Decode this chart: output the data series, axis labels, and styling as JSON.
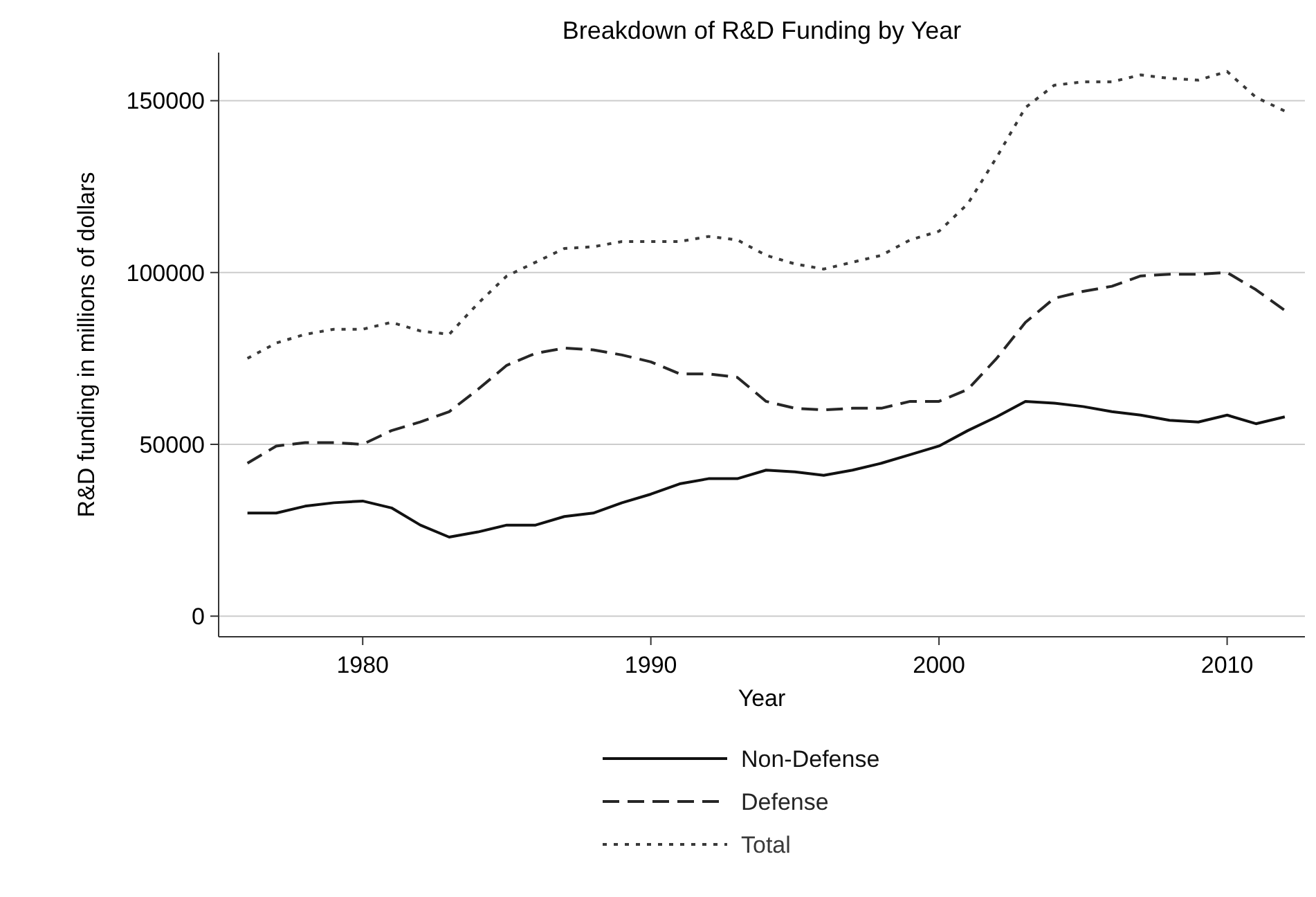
{
  "chart_data": {
    "type": "line",
    "title": "Breakdown of R&D Funding by Year",
    "xlabel": "Year",
    "ylabel": "R&D funding in millions of dollars",
    "x": [
      1976,
      1977,
      1978,
      1979,
      1980,
      1981,
      1982,
      1983,
      1984,
      1985,
      1986,
      1987,
      1988,
      1989,
      1990,
      1991,
      1992,
      1993,
      1994,
      1995,
      1996,
      1997,
      1998,
      1999,
      2000,
      2001,
      2002,
      2003,
      2004,
      2005,
      2006,
      2007,
      2008,
      2009,
      2010,
      2011,
      2012
    ],
    "xlim": [
      1975,
      2012.7
    ],
    "xticks": [
      1980,
      1990,
      2000,
      2010
    ],
    "ylim": [
      -6000,
      164000
    ],
    "yticks": [
      0,
      50000,
      100000,
      150000
    ],
    "grid": "y",
    "legend": "bottom",
    "series": [
      {
        "name": "Non-Defense",
        "color": "#111111",
        "line_style": "solid",
        "values": [
          30000,
          30000,
          32000,
          33000,
          33500,
          31500,
          26500,
          23000,
          24500,
          26500,
          26500,
          29000,
          30000,
          33000,
          35500,
          38500,
          40000,
          40000,
          42500,
          42000,
          41000,
          42500,
          44500,
          47000,
          49500,
          54000,
          58000,
          62500,
          62000,
          61000,
          59500,
          58500,
          57000,
          56500,
          58500,
          56000,
          58000
        ]
      },
      {
        "name": "Defense",
        "color": "#262626",
        "line_style": "dashed",
        "values": [
          44500,
          49500,
          50500,
          50500,
          50000,
          54000,
          56500,
          59500,
          66000,
          73000,
          76500,
          78000,
          77500,
          76000,
          74000,
          70500,
          70500,
          69500,
          62500,
          60500,
          60000,
          60500,
          60500,
          62500,
          62500,
          66000,
          75000,
          85500,
          92500,
          94500,
          96000,
          99000,
          99500,
          99500,
          100000,
          95000,
          89000
        ]
      },
      {
        "name": "Total",
        "color": "#3a3a3a",
        "line_style": "dotted",
        "values": [
          75000,
          79500,
          82000,
          83500,
          83500,
          85500,
          83000,
          82000,
          91000,
          99000,
          103000,
          107000,
          107500,
          109000,
          109000,
          109000,
          110500,
          109500,
          105000,
          102500,
          101000,
          103000,
          105000,
          109500,
          112000,
          120000,
          133500,
          148000,
          154500,
          155500,
          155500,
          157500,
          156500,
          156000,
          158500,
          151000,
          147000
        ]
      }
    ]
  }
}
